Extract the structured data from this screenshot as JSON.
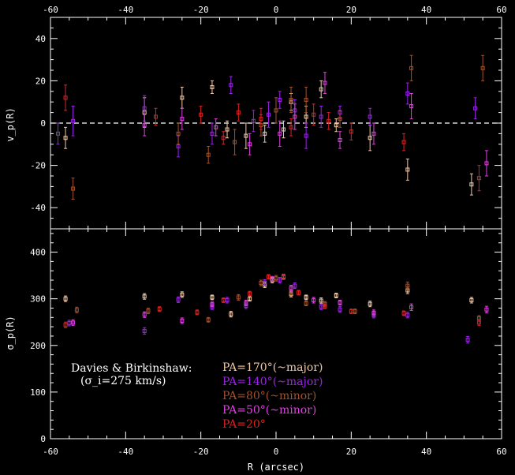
{
  "chart_data": [
    {
      "type": "scatter",
      "panel": "top",
      "ylabel": "v_p(R)",
      "xlim": [
        -60,
        60
      ],
      "ylim": [
        -50,
        50
      ],
      "xticks": [
        -60,
        -40,
        -20,
        0,
        20,
        40,
        60
      ],
      "yticks": [
        -40,
        -20,
        0,
        20,
        40
      ],
      "zero_line": true,
      "series": [
        {
          "name": "PA=170°(~major)",
          "color": "#f0c8a8",
          "points": [
            [
              -56,
              -7,
              5
            ],
            [
              -35,
              5,
              7
            ],
            [
              -25,
              12,
              5
            ],
            [
              -17,
              17,
              3
            ],
            [
              -13,
              -3,
              4
            ],
            [
              -8,
              -6,
              6
            ],
            [
              -3,
              -5,
              4
            ],
            [
              2,
              -3,
              4
            ],
            [
              4,
              10,
              4
            ],
            [
              8,
              3,
              5
            ],
            [
              12,
              16,
              4
            ],
            [
              16,
              -1,
              3
            ],
            [
              25,
              -7,
              6
            ],
            [
              35,
              -22,
              5
            ],
            [
              52,
              -29,
              5
            ]
          ]
        },
        {
          "name": "PA=140°(~major)",
          "color": "#a020f0",
          "points": [
            [
              -58,
              -5,
              5
            ],
            [
              -54,
              1,
              7
            ],
            [
              -35,
              7,
              6
            ],
            [
              -26,
              -11,
              5
            ],
            [
              -17,
              -5,
              5
            ],
            [
              -12,
              18,
              4
            ],
            [
              -6,
              1,
              5
            ],
            [
              -2,
              4,
              6
            ],
            [
              1,
              11,
              4
            ],
            [
              5,
              6,
              5
            ],
            [
              8,
              -6,
              6
            ],
            [
              12,
              3,
              5
            ],
            [
              17,
              5,
              3
            ],
            [
              25,
              3,
              4
            ],
            [
              35,
              14,
              5
            ],
            [
              53,
              7,
              5
            ]
          ]
        },
        {
          "name": "PA=80°(~minor)",
          "color": "#a0522d",
          "points": [
            [
              -54,
              -31,
              5
            ],
            [
              -26,
              -5,
              5
            ],
            [
              -18,
              -15,
              4
            ],
            [
              -11,
              -9,
              6
            ],
            [
              -4,
              -1,
              5
            ],
            [
              0,
              6,
              6
            ],
            [
              4,
              11,
              6
            ],
            [
              8,
              11,
              6
            ],
            [
              17,
              2,
              4
            ],
            [
              36,
              26,
              6
            ],
            [
              55,
              26,
              6
            ]
          ]
        },
        {
          "name": "PA=50°(~minor)",
          "color": "#e040e0",
          "points": [
            [
              -35,
              -1,
              5
            ],
            [
              -25,
              2,
              5
            ],
            [
              -16,
              -2,
              4
            ],
            [
              -7,
              -10,
              5
            ],
            [
              1,
              -5,
              6
            ],
            [
              5,
              3,
              6
            ],
            [
              13,
              19,
              5
            ],
            [
              17,
              -8,
              4
            ],
            [
              26,
              -5,
              5
            ],
            [
              36,
              8,
              6
            ],
            [
              56,
              -19,
              6
            ]
          ]
        },
        {
          "name": "PA=20°",
          "color": "#e02020",
          "points": [
            [
              -56,
              12,
              6
            ],
            [
              -32,
              3,
              4
            ],
            [
              -20,
              4,
              4
            ],
            [
              -14,
              -7,
              3
            ],
            [
              -10,
              5,
              4
            ],
            [
              -4,
              2,
              5
            ],
            [
              4,
              -2,
              4
            ],
            [
              10,
              4,
              5
            ],
            [
              14,
              1,
              4
            ],
            [
              20,
              -4,
              4
            ],
            [
              34,
              -9,
              4
            ],
            [
              54,
              -26,
              6
            ]
          ]
        }
      ]
    },
    {
      "type": "scatter",
      "panel": "bottom",
      "ylabel": "σ_p(R)",
      "xlabel": "R (arcsec)",
      "xlim": [
        -60,
        60
      ],
      "ylim": [
        0,
        450
      ],
      "xticks": [
        -60,
        -40,
        -20,
        0,
        20,
        40,
        60
      ],
      "yticks": [
        0,
        100,
        200,
        300,
        400
      ],
      "annotation_lines": [
        "Davies & Birkinshaw:",
        "(σ_i=275 km/s)"
      ],
      "series": [
        {
          "name": "PA=170°(~major)",
          "color": "#f0c8a8",
          "points": [
            [
              -56,
              300,
              6
            ],
            [
              -35,
              305,
              6
            ],
            [
              -25,
              309,
              6
            ],
            [
              -17,
              303,
              5
            ],
            [
              -12,
              267,
              6
            ],
            [
              -7,
              300,
              5
            ],
            [
              -3,
              330,
              6
            ],
            [
              -1,
              340,
              6
            ],
            [
              2,
              347,
              5
            ],
            [
              4,
              310,
              6
            ],
            [
              8,
              303,
              5
            ],
            [
              12,
              296,
              6
            ],
            [
              16,
              307,
              5
            ],
            [
              25,
              289,
              6
            ],
            [
              35,
              318,
              7
            ],
            [
              52,
              297,
              6
            ]
          ]
        },
        {
          "name": "PA=140°(~major)",
          "color": "#a020f0",
          "points": [
            [
              -55,
              248,
              6
            ],
            [
              -35,
              231,
              7
            ],
            [
              -26,
              298,
              6
            ],
            [
              -17,
              283,
              6
            ],
            [
              -13,
              297,
              6
            ],
            [
              -8,
              285,
              6
            ],
            [
              -3,
              335,
              6
            ],
            [
              1,
              340,
              6
            ],
            [
              5,
              328,
              6
            ],
            [
              12,
              283,
              6
            ],
            [
              17,
              277,
              6
            ],
            [
              26,
              265,
              6
            ],
            [
              35,
              265,
              6
            ],
            [
              51,
              212,
              7
            ]
          ]
        },
        {
          "name": "PA=80°(~minor)",
          "color": "#a0522d",
          "points": [
            [
              -53,
              276,
              6
            ],
            [
              -34,
              274,
              6
            ],
            [
              -18,
              255,
              5
            ],
            [
              -10,
              303,
              6
            ],
            [
              -4,
              334,
              6
            ],
            [
              0,
              344,
              6
            ],
            [
              4,
              314,
              6
            ],
            [
              8,
              290,
              5
            ],
            [
              13,
              289,
              5
            ],
            [
              21,
              273,
              5
            ],
            [
              35,
              328,
              8
            ],
            [
              54,
              258,
              6
            ]
          ]
        },
        {
          "name": "PA=50°(~minor)",
          "color": "#e040e0",
          "points": [
            [
              -54,
              249,
              6
            ],
            [
              -35,
              266,
              6
            ],
            [
              -25,
              253,
              6
            ],
            [
              -17,
              288,
              5
            ],
            [
              -8,
              291,
              6
            ],
            [
              -1,
              342,
              6
            ],
            [
              4,
              323,
              6
            ],
            [
              10,
              297,
              6
            ],
            [
              17,
              292,
              5
            ],
            [
              26,
              270,
              6
            ],
            [
              36,
              282,
              7
            ],
            [
              56,
              277,
              7
            ]
          ]
        },
        {
          "name": "PA=20°",
          "color": "#e02020",
          "points": [
            [
              -56,
              244,
              6
            ],
            [
              -31,
              278,
              5
            ],
            [
              -21,
              271,
              5
            ],
            [
              -14,
              297,
              5
            ],
            [
              -7,
              311,
              5
            ],
            [
              -2,
              347,
              5
            ],
            [
              2,
              348,
              5
            ],
            [
              6,
              313,
              5
            ],
            [
              13,
              284,
              5
            ],
            [
              20,
              273,
              5
            ],
            [
              34,
              269,
              5
            ],
            [
              54,
              249,
              6
            ]
          ]
        }
      ]
    }
  ],
  "legend": {
    "placement": "bottom-center",
    "entries": [
      {
        "label": "PA=170°(~major)",
        "color": "#f0c8a8"
      },
      {
        "label": "PA=140°(~major)",
        "color": "#a020f0"
      },
      {
        "label": "PA=80°(~minor)",
        "color": "#a0522d"
      },
      {
        "label": "PA=50°(~minor)",
        "color": "#e040e0"
      },
      {
        "label": "PA=20°",
        "color": "#e02020"
      }
    ]
  }
}
